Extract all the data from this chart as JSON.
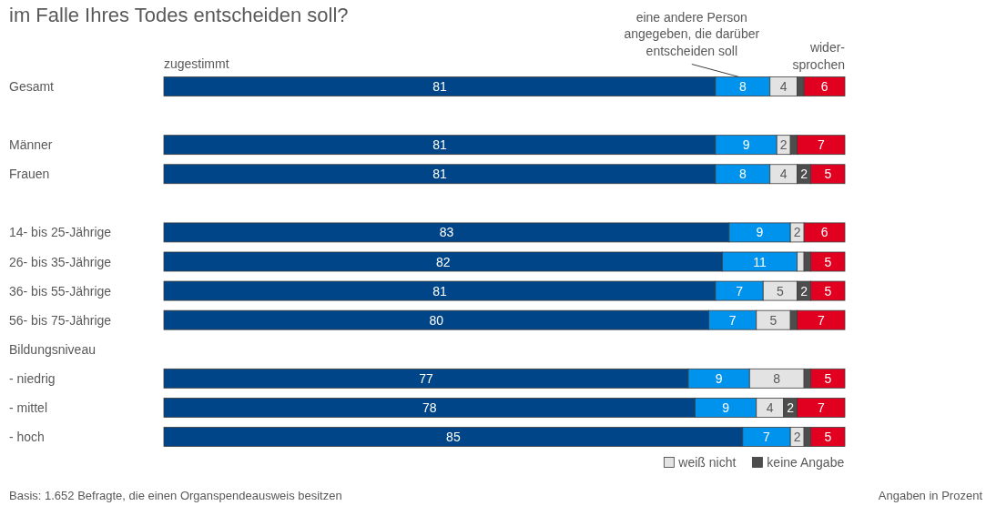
{
  "chart_data": {
    "type": "bar",
    "orientation": "horizontal",
    "stacked": true,
    "title": "im Falle Ihres Todes entscheiden soll?",
    "categories": [
      "Gesamt",
      null,
      "Männer",
      "Frauen",
      null,
      "14- bis 25-Jährige",
      "26- bis 35-Jährige",
      "36- bis 55-Jährige",
      "56- bis 75-Jährige",
      "Bildungsniveau",
      "- niedrig",
      "- mittel",
      "- hoch"
    ],
    "xlim": [
      0,
      100
    ],
    "tick_labels": "y",
    "legend": "bottom right",
    "series": [
      {
        "name": "zugestimmt",
        "color": "#004587",
        "values": [
          81,
          null,
          81,
          81,
          null,
          83,
          82,
          81,
          80,
          null,
          77,
          78,
          85
        ],
        "value_labels": [
          "81",
          null,
          "81",
          "81",
          null,
          "83",
          "82",
          "81",
          "80",
          null,
          "77",
          "78",
          "85"
        ]
      },
      {
        "name": "eine andere Person\nangegeben, die darüber\nentscheiden soll",
        "color": "#0093ee",
        "values": [
          8,
          null,
          9,
          8,
          null,
          9,
          11,
          7,
          7,
          null,
          9,
          9,
          7
        ],
        "value_labels": [
          "8",
          null,
          "9",
          "8",
          null,
          "9",
          "11",
          "7",
          "7",
          null,
          "9",
          "9",
          "7"
        ]
      },
      {
        "name": "weiß nicht",
        "color": "#e3e3e3",
        "values": [
          4,
          null,
          2,
          4,
          null,
          2,
          1,
          5,
          5,
          null,
          8,
          4,
          2
        ],
        "value_labels": [
          "4",
          null,
          "2",
          "4",
          null,
          "2",
          null,
          "5",
          "5",
          null,
          "8",
          "4",
          "2"
        ]
      },
      {
        "name": "keine Angabe",
        "color": "#4d4d4d",
        "values": [
          1,
          null,
          1,
          2,
          null,
          null,
          1,
          2,
          1,
          null,
          1,
          2,
          1
        ],
        "value_labels": [
          null,
          null,
          null,
          "2",
          null,
          null,
          null,
          "2",
          null,
          null,
          null,
          "2",
          null
        ]
      },
      {
        "name": "wider-\nsprochen",
        "color": "#e10020",
        "values": [
          6,
          null,
          7,
          5,
          null,
          6,
          5,
          5,
          7,
          null,
          5,
          7,
          5
        ],
        "value_labels": [
          "6",
          null,
          "7",
          "5",
          null,
          "6",
          "5",
          "5",
          "7",
          null,
          "5",
          "7",
          "5"
        ]
      }
    ],
    "annotations": [
      "Basis: 1.652 Befragte, die einen Organspendeausweis besitzen",
      "Angaben in Prozent"
    ]
  }
}
